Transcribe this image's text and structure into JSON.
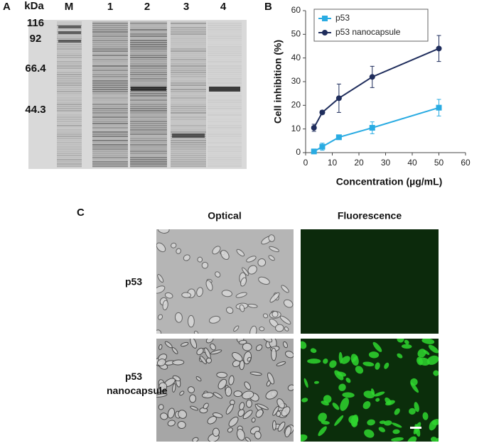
{
  "panels": {
    "a": {
      "label": "A",
      "unit": "kDa",
      "lanes": [
        "M",
        "1",
        "2",
        "3",
        "4"
      ],
      "markers": [
        "116",
        "92",
        "66.4",
        "44.3"
      ]
    },
    "b": {
      "label": "B"
    },
    "c": {
      "label": "C",
      "columns": [
        "Optical",
        "Fluorescence"
      ],
      "rows": [
        "p53",
        "p53 nanocapsule"
      ]
    }
  },
  "chart_data": {
    "type": "line",
    "xlabel": "Concentration (µg/mL)",
    "ylabel": "Cell inhibition (%)",
    "x": [
      3.125,
      6.25,
      12.5,
      25,
      50
    ],
    "series": [
      {
        "name": "p53",
        "color": "#29abe2",
        "marker": "square",
        "values": [
          0.5,
          2.5,
          6.5,
          10.5,
          19
        ],
        "errors": [
          0.5,
          1.5,
          0.8,
          2.5,
          3.5
        ]
      },
      {
        "name": "p53 nanocapsule",
        "color": "#1f2d5c",
        "marker": "circle",
        "values": [
          10.5,
          17,
          23,
          32,
          44
        ],
        "errors": [
          1.5,
          0.8,
          6,
          4.5,
          5.5
        ]
      }
    ],
    "xlim": [
      0,
      60
    ],
    "xticks": [
      0,
      10,
      20,
      30,
      40,
      50,
      60
    ],
    "ylim": [
      0,
      60
    ],
    "yticks": [
      0,
      10,
      20,
      30,
      40,
      50,
      60
    ],
    "grid": false,
    "legend": "upper left"
  }
}
